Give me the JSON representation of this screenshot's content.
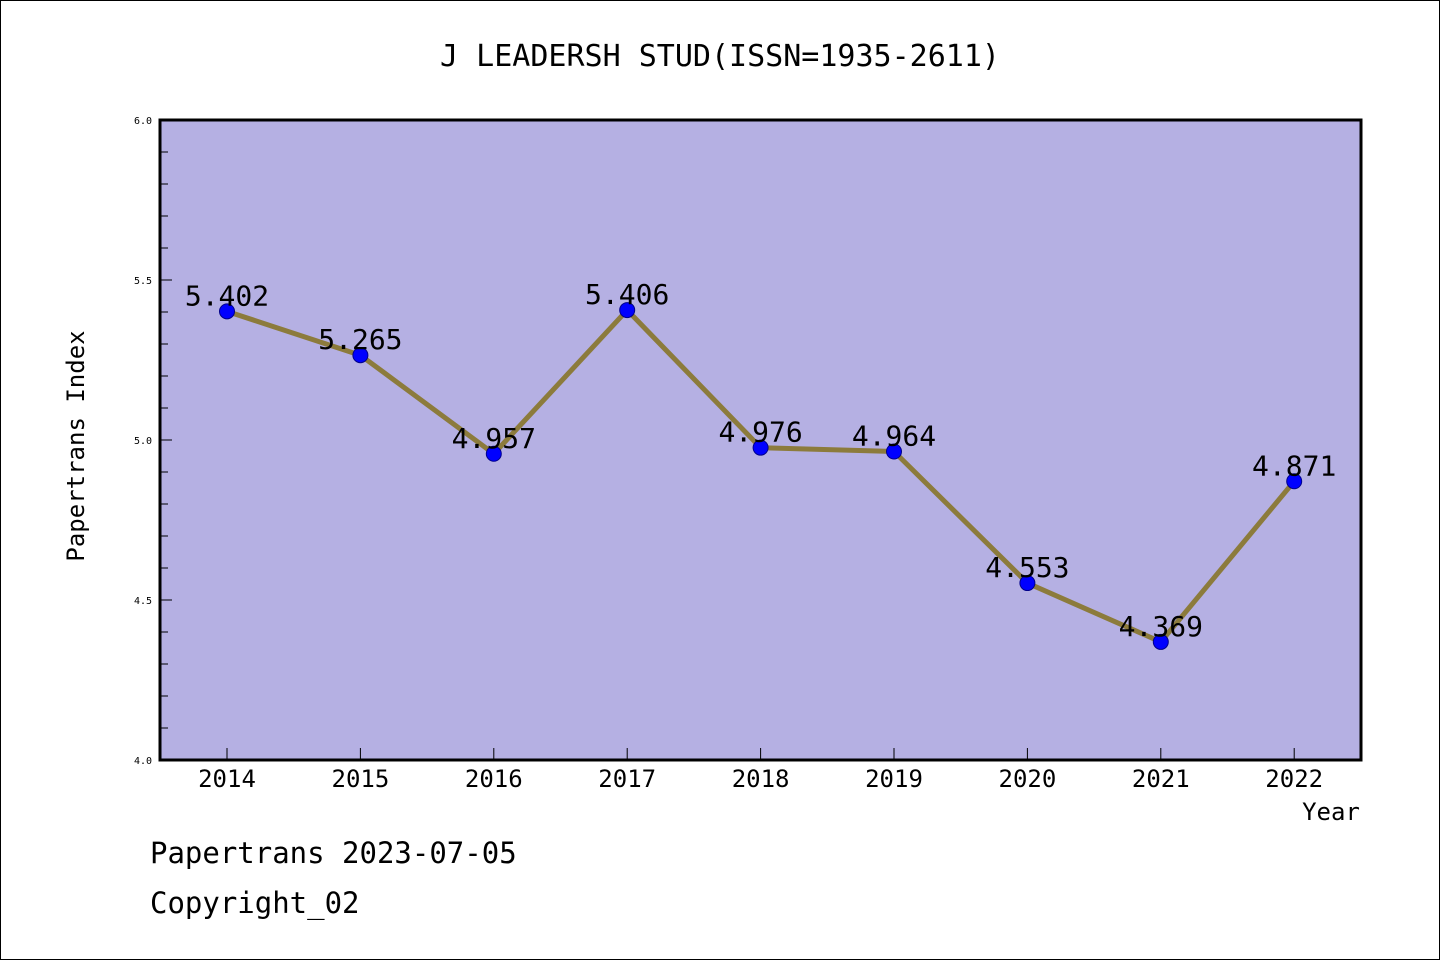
{
  "chart_data": {
    "type": "line",
    "title": "J LEADERSH STUD(ISSN=1935-2611)",
    "xlabel": "Year",
    "ylabel": "Papertrans Index",
    "categories": [
      "2014",
      "2015",
      "2016",
      "2017",
      "2018",
      "2019",
      "2020",
      "2021",
      "2022"
    ],
    "series": [
      {
        "values": [
          5.402,
          5.265,
          4.957,
          5.406,
          4.976,
          4.964,
          4.553,
          4.369,
          4.871
        ],
        "labels": [
          "5.402",
          "5.265",
          "4.957",
          "5.406",
          "4.976",
          "4.964",
          "4.553",
          "4.369",
          "4.871"
        ]
      }
    ],
    "ylim": [
      4.0,
      6.0
    ],
    "yticks": [
      "4.0",
      "4.5",
      "5.0",
      "5.5",
      "6.0"
    ],
    "grid": false,
    "colors": {
      "plot_background": "#b5b0e3",
      "line": "#8c7b3c",
      "marker": "#0000ff"
    }
  },
  "footer": {
    "date_line": "Papertrans 2023-07-05",
    "copyright": "Copyright_02"
  }
}
